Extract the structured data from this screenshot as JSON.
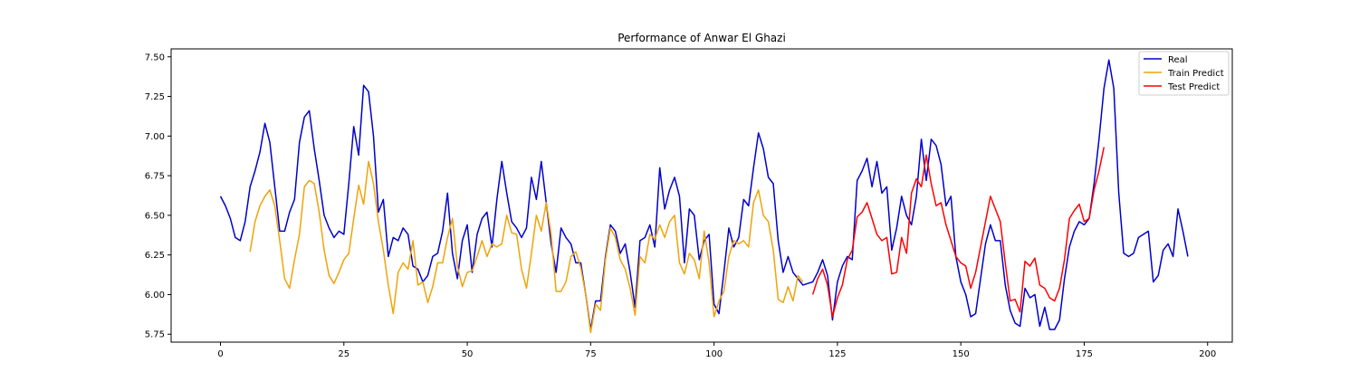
{
  "chart_data": {
    "type": "line",
    "title": "Performance of Anwar El Ghazi",
    "xlabel": "",
    "ylabel": "",
    "xlim": [
      -10,
      205
    ],
    "ylim": [
      5.7,
      7.55
    ],
    "xticks": [
      0,
      25,
      50,
      75,
      100,
      125,
      150,
      175,
      200
    ],
    "yticks": [
      5.75,
      6.0,
      6.25,
      6.5,
      6.75,
      7.0,
      7.25,
      7.5
    ],
    "xtick_labels": [
      "0",
      "25",
      "50",
      "75",
      "100",
      "125",
      "150",
      "175",
      "200"
    ],
    "ytick_labels": [
      "5.75",
      "6.00",
      "6.25",
      "6.50",
      "6.75",
      "7.00",
      "7.25",
      "7.50"
    ],
    "grid": false,
    "legend_position": "top-right",
    "series": [
      {
        "name": "Real",
        "color": "#0000cd",
        "x0": 0,
        "values": [
          6.62,
          6.56,
          6.48,
          6.36,
          6.34,
          6.46,
          6.68,
          6.78,
          6.9,
          7.08,
          6.96,
          6.68,
          6.4,
          6.4,
          6.52,
          6.6,
          6.96,
          7.12,
          7.16,
          6.92,
          6.72,
          6.5,
          6.42,
          6.36,
          6.4,
          6.38,
          6.7,
          7.06,
          6.88,
          7.32,
          7.28,
          7.0,
          6.52,
          6.6,
          6.24,
          6.36,
          6.34,
          6.42,
          6.38,
          6.18,
          6.16,
          6.08,
          6.12,
          6.24,
          6.26,
          6.4,
          6.64,
          6.26,
          6.1,
          6.34,
          6.44,
          6.14,
          6.38,
          6.48,
          6.52,
          6.3,
          6.6,
          6.84,
          6.64,
          6.46,
          6.42,
          6.36,
          6.42,
          6.74,
          6.6,
          6.84,
          6.58,
          6.32,
          6.14,
          6.42,
          6.36,
          6.32,
          6.2,
          6.2,
          6.0,
          5.78,
          5.96,
          5.96,
          6.24,
          6.44,
          6.4,
          6.26,
          6.32,
          6.14,
          5.92,
          6.34,
          6.36,
          6.44,
          6.3,
          6.8,
          6.54,
          6.66,
          6.74,
          6.62,
          6.2,
          6.54,
          6.5,
          6.22,
          6.34,
          6.38,
          5.94,
          5.88,
          6.14,
          6.42,
          6.3,
          6.36,
          6.6,
          6.56,
          6.8,
          7.02,
          6.92,
          6.74,
          6.7,
          6.34,
          6.14,
          6.24,
          6.14,
          6.1,
          6.06,
          6.07,
          6.08,
          6.14,
          6.22,
          6.12,
          5.84,
          6.08,
          6.18,
          6.24,
          6.22,
          6.72,
          6.78,
          6.86,
          6.68,
          6.84,
          6.64,
          6.68,
          6.28,
          6.42,
          6.62,
          6.5,
          6.44,
          6.62,
          6.98,
          6.72,
          6.98,
          6.94,
          6.82,
          6.56,
          6.62,
          6.24,
          6.08,
          6.0,
          5.86,
          5.88,
          6.1,
          6.32,
          6.44,
          6.34,
          6.34,
          6.06,
          5.9,
          5.82,
          5.8,
          6.04,
          5.98,
          6.0,
          5.8,
          5.92,
          5.78,
          5.78,
          5.84,
          6.1,
          6.3,
          6.4,
          6.46,
          6.44,
          6.48,
          6.7,
          6.98,
          7.3,
          7.48,
          7.3,
          6.64,
          6.26,
          6.24,
          6.26,
          6.36,
          6.38,
          6.4,
          6.08,
          6.12,
          6.28,
          6.32,
          6.24,
          6.54,
          6.4,
          6.24
        ]
      },
      {
        "name": "Train Predict",
        "color": "#f0a30a",
        "x0": 6,
        "values": [
          6.27,
          6.46,
          6.56,
          6.62,
          6.66,
          6.56,
          6.34,
          6.1,
          6.04,
          6.22,
          6.38,
          6.68,
          6.72,
          6.7,
          6.52,
          6.28,
          6.12,
          6.07,
          6.14,
          6.22,
          6.26,
          6.48,
          6.69,
          6.57,
          6.84,
          6.7,
          6.46,
          6.28,
          6.06,
          5.88,
          6.14,
          6.2,
          6.16,
          6.34,
          6.06,
          6.08,
          5.95,
          6.05,
          6.2,
          6.2,
          6.36,
          6.48,
          6.18,
          6.05,
          6.14,
          6.15,
          6.24,
          6.34,
          6.24,
          6.32,
          6.3,
          6.32,
          6.5,
          6.39,
          6.38,
          6.16,
          6.04,
          6.26,
          6.5,
          6.4,
          6.58,
          6.38,
          6.02,
          6.02,
          6.08,
          6.24,
          6.27,
          6.17,
          6.0,
          5.76,
          5.94,
          5.9,
          6.22,
          6.42,
          6.36,
          6.22,
          6.16,
          6.04,
          5.87,
          6.24,
          6.2,
          6.38,
          6.35,
          6.44,
          6.36,
          6.46,
          6.5,
          6.2,
          6.13,
          6.26,
          6.22,
          6.1,
          6.4,
          6.2,
          5.86,
          5.96,
          6.02,
          6.24,
          6.34,
          6.32,
          6.34,
          6.3,
          6.58,
          6.66,
          6.5,
          6.46,
          6.28,
          5.97,
          5.95,
          6.05,
          5.96,
          6.12,
          6.08
        ]
      },
      {
        "name": "Test Predict",
        "color": "#ff0000",
        "x0": 120,
        "values": [
          6.0,
          6.1,
          6.16,
          6.06,
          5.86,
          5.98,
          6.06,
          6.22,
          6.28,
          6.49,
          6.52,
          6.58,
          6.48,
          6.38,
          6.34,
          6.36,
          6.13,
          6.14,
          6.36,
          6.26,
          6.64,
          6.73,
          6.68,
          6.88,
          6.7,
          6.56,
          6.58,
          6.44,
          6.34,
          6.24,
          6.2,
          6.18,
          6.04,
          6.14,
          6.3,
          6.46,
          6.62,
          6.54,
          6.46,
          6.2,
          5.96,
          5.97,
          5.89,
          6.21,
          6.18,
          6.23,
          6.06,
          6.04,
          5.98,
          5.96,
          6.04,
          6.22,
          6.48,
          6.53,
          6.57,
          6.46,
          6.48,
          6.66,
          6.78,
          6.93
        ]
      }
    ]
  }
}
